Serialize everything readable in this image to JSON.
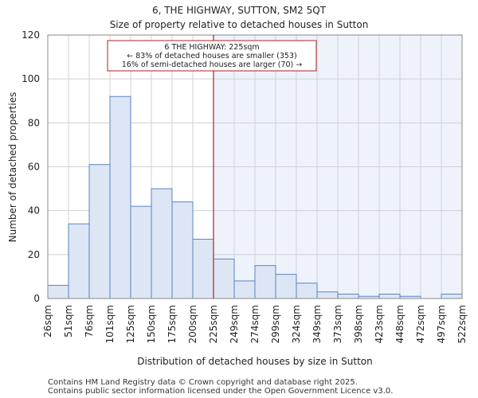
{
  "chart_data": {
    "type": "bar",
    "title": "6, THE HIGHWAY, SUTTON, SM2 5QT",
    "subtitle": "Size of property relative to detached houses in Sutton",
    "xlabel": "Distribution of detached houses by size in Sutton",
    "ylabel": "Number of detached properties",
    "ylim": [
      0,
      120
    ],
    "yticks": [
      0,
      20,
      40,
      60,
      80,
      100,
      120
    ],
    "bin_edge_labels": [
      "26sqm",
      "51sqm",
      "76sqm",
      "101sqm",
      "125sqm",
      "150sqm",
      "175sqm",
      "200sqm",
      "225sqm",
      "249sqm",
      "274sqm",
      "299sqm",
      "324sqm",
      "349sqm",
      "373sqm",
      "398sqm",
      "423sqm",
      "448sqm",
      "472sqm",
      "497sqm",
      "522sqm"
    ],
    "values": [
      6,
      34,
      61,
      92,
      42,
      50,
      44,
      27,
      18,
      8,
      15,
      11,
      7,
      3,
      2,
      1,
      2,
      1,
      0,
      2
    ],
    "marker": {
      "value_label": "225sqm",
      "bin_index": 8,
      "color": "#b22222"
    },
    "annotation": {
      "line1": "6 THE HIGHWAY: 225sqm",
      "line2": "← 83% of detached houses are smaller (353)",
      "line3": "16% of semi-detached houses are larger (70) →"
    },
    "colors": {
      "bar_fill": "#dce6f5",
      "bar_stroke": "#5b83c2",
      "highlight_bg": "#eef2fb",
      "grid": "#d0d0d0"
    }
  },
  "footer": {
    "line1": "Contains HM Land Registry data © Crown copyright and database right 2025.",
    "line2": "Contains public sector information licensed under the Open Government Licence v3.0."
  }
}
